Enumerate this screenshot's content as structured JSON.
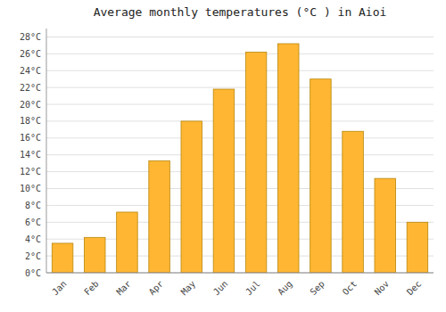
{
  "chart_data": {
    "type": "bar",
    "title": "Average monthly temperatures (°C ) in Aioi",
    "categories": [
      "Jan",
      "Feb",
      "Mar",
      "Apr",
      "May",
      "Jun",
      "Jul",
      "Aug",
      "Sep",
      "Oct",
      "Nov",
      "Dec"
    ],
    "values": [
      3.5,
      4.2,
      7.2,
      13.3,
      18.0,
      21.8,
      26.2,
      27.2,
      23.0,
      16.8,
      11.2,
      6.0
    ],
    "color": "#FFB733",
    "ylim": [
      0,
      29
    ],
    "yticks": [
      {
        "value": 0,
        "label": "0°C"
      },
      {
        "value": 2,
        "label": "2°C"
      },
      {
        "value": 4,
        "label": "4°C"
      },
      {
        "value": 6,
        "label": "6°C"
      },
      {
        "value": 8,
        "label": "8°C"
      },
      {
        "value": 10,
        "label": "10°C"
      },
      {
        "value": 12,
        "label": "12°C"
      },
      {
        "value": 14,
        "label": "14°C"
      },
      {
        "value": 16,
        "label": "16°C"
      },
      {
        "value": 18,
        "label": "18°C"
      },
      {
        "value": 20,
        "label": "20°C"
      },
      {
        "value": 22,
        "label": "22°C"
      },
      {
        "value": 24,
        "label": "24°C"
      },
      {
        "value": 26,
        "label": "26°C"
      },
      {
        "value": 28,
        "label": "28°C"
      }
    ],
    "grid": true
  }
}
